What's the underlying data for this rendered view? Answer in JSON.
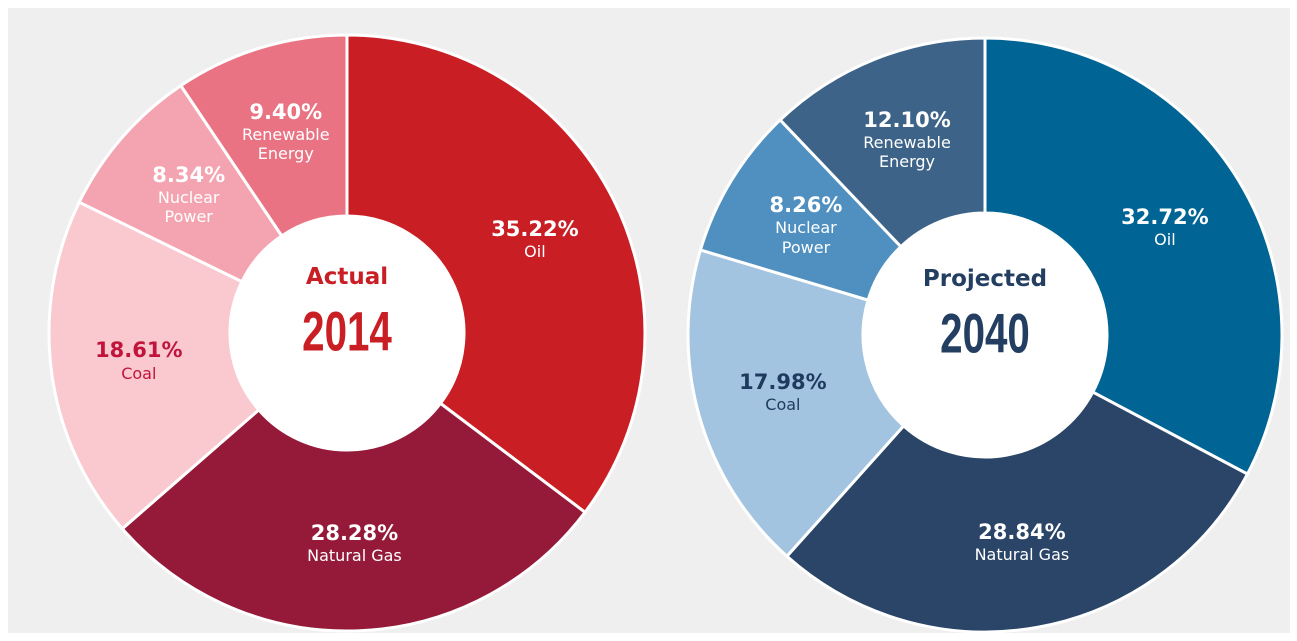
{
  "chart_data": [
    {
      "type": "pie",
      "title": "Actual",
      "subtitle": "2014",
      "title_color": "#c81e24",
      "categories": [
        "Oil",
        "Natural Gas",
        "Coal",
        "Nuclear Power",
        "Renewable Energy"
      ],
      "values": [
        35.22,
        28.28,
        18.61,
        8.34,
        9.4
      ],
      "value_labels": [
        "35.22%",
        "28.28%",
        "18.61%",
        "8.34%",
        "9.40%"
      ],
      "colors": [
        "#c81e24",
        "#951938",
        "#f9c9cf",
        "#f4a4b0",
        "#e97382"
      ],
      "label_colors": [
        "#ffffff",
        "#ffffff",
        "#c0143c",
        "#ffffff",
        "#ffffff"
      ]
    },
    {
      "type": "pie",
      "title": "Projected",
      "subtitle": "2040",
      "title_color": "#233e61",
      "categories": [
        "Oil",
        "Natural Gas",
        "Coal",
        "Nuclear Power",
        "Renewable Energy"
      ],
      "values": [
        32.72,
        28.84,
        17.98,
        8.26,
        12.1
      ],
      "value_labels": [
        "32.72%",
        "28.84%",
        "17.98%",
        "8.26%",
        "12.10%"
      ],
      "colors": [
        "#006494",
        "#2b4568",
        "#a3c4e0",
        "#5090c0",
        "#3d6488"
      ],
      "label_colors": [
        "#ffffff",
        "#ffffff",
        "#1f3a5f",
        "#ffffff",
        "#ffffff"
      ]
    }
  ]
}
